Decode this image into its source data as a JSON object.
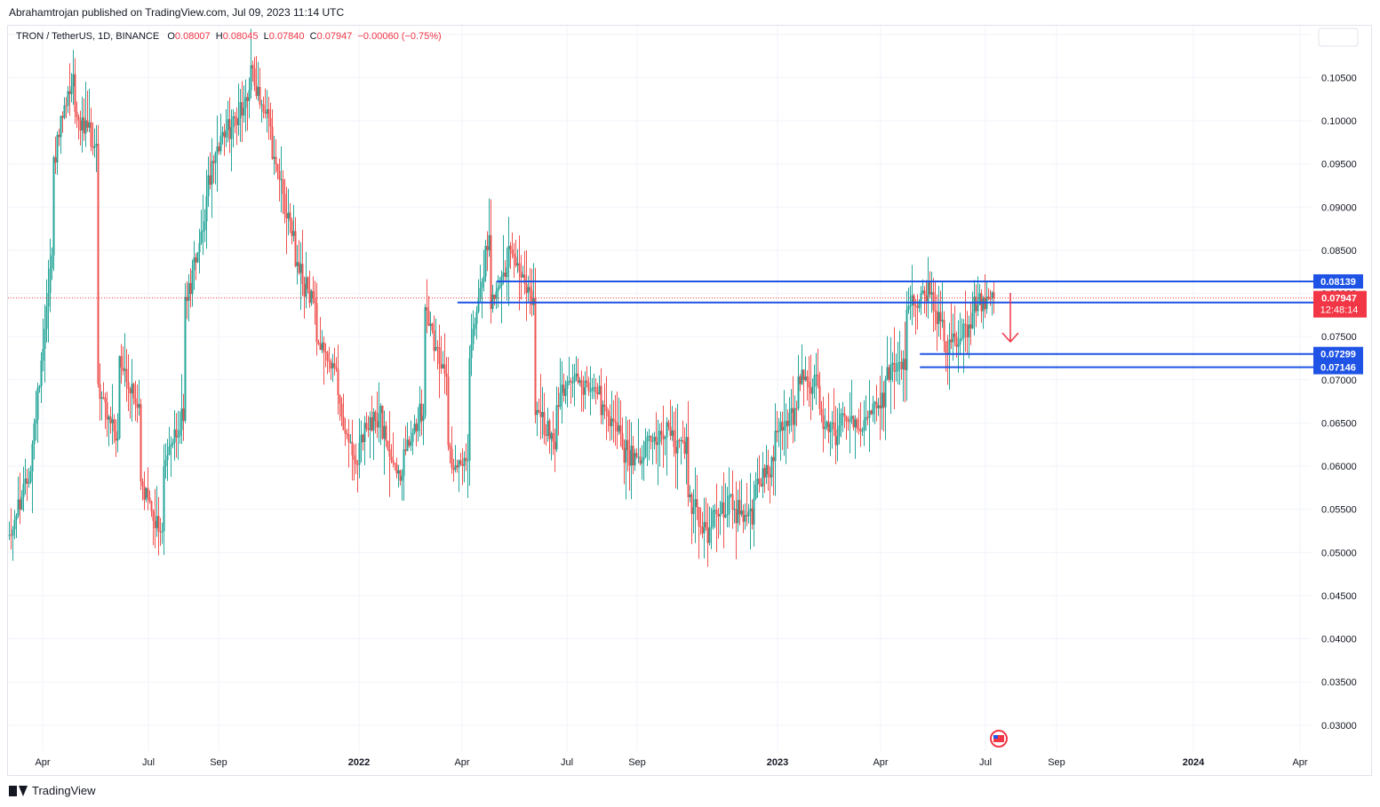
{
  "header": {
    "published": "Abrahamtrojan published on TradingView.com, Jul 09, 2023 11:14 UTC"
  },
  "legend": {
    "symbol": "TRON / TetherUS, 1D, BINANCE",
    "o_label": "O",
    "o": "0.08007",
    "h_label": "H",
    "h": "0.08045",
    "l_label": "L",
    "l": "0.07840",
    "c_label": "C",
    "c": "0.07947",
    "change": "−0.00060 (−0.75%)"
  },
  "footer": {
    "brand": "TradingView"
  },
  "colors": {
    "up": "#26a69a",
    "down": "#ef5350",
    "level_line": "#1e53e5",
    "price_tag": "#f23645",
    "arrow": "#f23645"
  },
  "chart_data": {
    "type": "candlestick",
    "ylim": [
      0.027,
      0.111
    ],
    "y_ticks": [
      "0.03000",
      "0.03500",
      "0.04000",
      "0.04500",
      "0.05000",
      "0.05500",
      "0.06000",
      "0.06500",
      "0.07000",
      "0.07500",
      "0.08000",
      "0.08500",
      "0.09000",
      "0.09500",
      "0.10000",
      "0.10500",
      "0.11000"
    ],
    "x_ticks": [
      {
        "label": "Apr",
        "bold": false
      },
      {
        "label": "Jul",
        "bold": false
      },
      {
        "label": "Sep",
        "bold": false
      },
      {
        "label": "2022",
        "bold": true
      },
      {
        "label": "Apr",
        "bold": false
      },
      {
        "label": "Jul",
        "bold": false
      },
      {
        "label": "Sep",
        "bold": false
      },
      {
        "label": "2023",
        "bold": true
      },
      {
        "label": "Apr",
        "bold": false
      },
      {
        "label": "Jul",
        "bold": false
      },
      {
        "label": "Sep",
        "bold": false
      },
      {
        "label": "2024",
        "bold": true
      },
      {
        "label": "Apr",
        "bold": false
      }
    ],
    "anchors": [
      [
        0.052,
        0.06
      ],
      [
        0.061,
        0.086
      ],
      [
        0.095,
        0.107
      ],
      [
        0.101,
        0.097
      ],
      [
        0.07,
        0.062
      ],
      [
        0.072,
        0.066
      ],
      [
        0.058,
        0.052
      ],
      [
        0.06,
        0.066
      ],
      [
        0.078,
        0.09
      ],
      [
        0.092,
        0.1
      ],
      [
        0.098,
        0.104
      ],
      [
        0.106,
        0.099
      ],
      [
        0.096,
        0.086
      ],
      [
        0.084,
        0.078
      ],
      [
        0.076,
        0.07
      ],
      [
        0.068,
        0.058
      ],
      [
        0.063,
        0.066
      ],
      [
        0.064,
        0.058
      ],
      [
        0.062,
        0.067
      ],
      [
        0.078,
        0.07
      ],
      [
        0.061,
        0.06
      ],
      [
        0.073,
        0.088
      ],
      [
        0.079,
        0.085
      ],
      [
        0.084,
        0.079
      ],
      [
        0.066,
        0.063
      ],
      [
        0.068,
        0.07
      ],
      [
        0.07,
        0.068
      ],
      [
        0.066,
        0.064
      ],
      [
        0.062,
        0.06
      ],
      [
        0.063,
        0.064
      ],
      [
        0.064,
        0.062
      ],
      [
        0.057,
        0.051
      ],
      [
        0.054,
        0.056
      ],
      [
        0.055,
        0.054
      ],
      [
        0.057,
        0.061
      ],
      [
        0.063,
        0.067
      ],
      [
        0.07,
        0.07
      ],
      [
        0.066,
        0.063
      ],
      [
        0.066,
        0.065
      ],
      [
        0.066,
        0.067
      ],
      [
        0.07,
        0.072
      ],
      [
        0.078,
        0.08
      ],
      [
        0.081,
        0.073
      ],
      [
        0.074,
        0.076
      ],
      [
        0.079,
        0.0795
      ]
    ],
    "last_close": 0.07947,
    "price_levels": [
      {
        "label": "0.08139",
        "value": 0.08139,
        "from": 0.375
      },
      {
        "label": "0.07895",
        "value": 0.07895,
        "from": 0.345
      },
      {
        "label": "0.07299",
        "value": 0.07299,
        "from": 0.7
      },
      {
        "label": "0.07146",
        "value": 0.07146,
        "from": 0.7
      }
    ],
    "current_price": {
      "label": "0.07947",
      "countdown": "12:48:14"
    }
  }
}
